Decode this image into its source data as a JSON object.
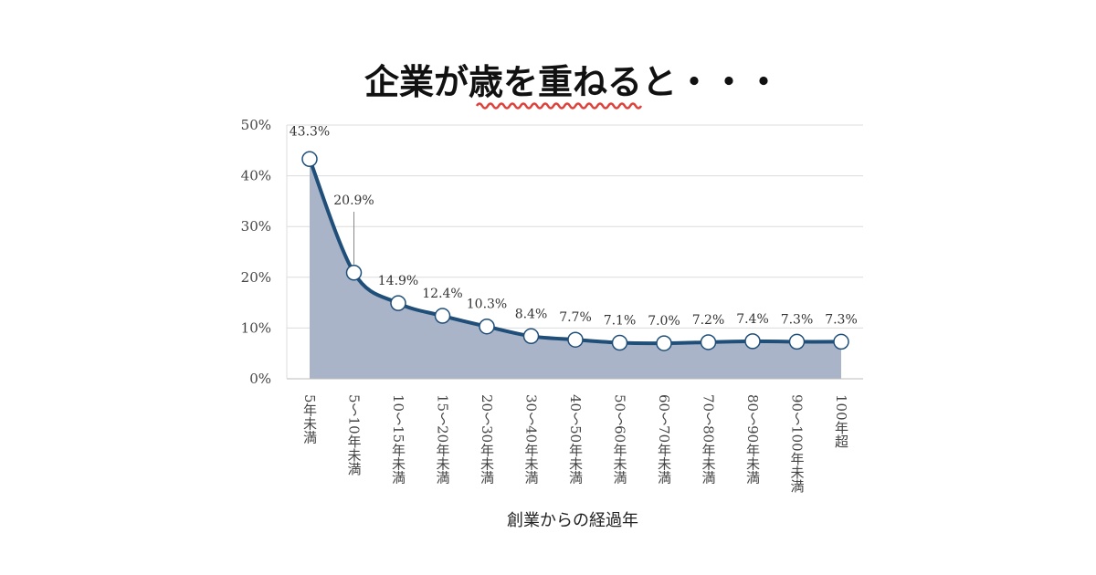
{
  "colors": {
    "line": "#1f4e79",
    "area": "#aab4c8",
    "grid": "#dcdcdc",
    "marker_fill": "#ffffff",
    "underline": "#e0403a"
  },
  "chart_data": {
    "type": "line",
    "title": "企業が歳を重ねると・・・",
    "xlabel": "創業からの経過年",
    "ylabel": "",
    "ylim": [
      0,
      50
    ],
    "yticks": [
      "0%",
      "10%",
      "20%",
      "30%",
      "40%",
      "50%"
    ],
    "grid": true,
    "categories": [
      "5年未満",
      "5～10年未満",
      "10～15年未満",
      "15～20年未満",
      "20～30年未満",
      "30～40年未満",
      "40～50年未満",
      "50～60年未満",
      "60～70年未満",
      "70～80年未満",
      "80～90年未満",
      "90～100年未満",
      "100年超"
    ],
    "values": [
      43.3,
      20.9,
      14.9,
      12.4,
      10.3,
      8.4,
      7.7,
      7.1,
      7.0,
      7.2,
      7.4,
      7.3,
      7.3
    ],
    "data_labels": [
      "43.3%",
      "20.9%",
      "14.9%",
      "12.4%",
      "10.3%",
      "8.4%",
      "7.7%",
      "7.1%",
      "7.0%",
      "7.2%",
      "7.4%",
      "7.3%",
      "7.3%"
    ]
  }
}
